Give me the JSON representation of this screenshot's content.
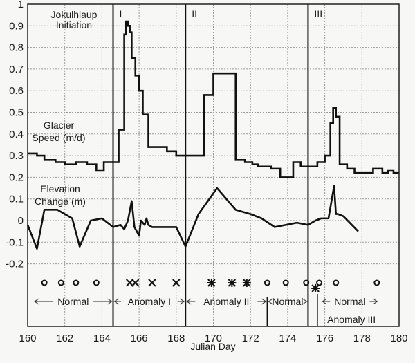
{
  "chart_data": {
    "type": "line",
    "title": "",
    "xlabel": "Julian Day",
    "ylabel": "",
    "xlim": [
      160,
      180
    ],
    "ylim": [
      -0.3,
      1.0
    ],
    "grid": true,
    "x_ticks": [
      160,
      162,
      164,
      166,
      168,
      170,
      172,
      174,
      176,
      178,
      180
    ],
    "y_ticks": [
      1,
      0.9,
      0.8,
      0.7,
      0.6,
      0.5,
      0.4,
      0.3,
      0.2,
      0.1,
      0,
      -0.1,
      -0.2
    ],
    "y_tick_labels": [
      "1",
      "0.9",
      "0.8",
      "0.7",
      "0.6",
      "0.5",
      "0.4",
      "0.3",
      "0.2",
      "0.1",
      "0",
      "-0.1",
      "-0.2"
    ],
    "annotations": {
      "jokulhlaup": "Jokulhlaup\nInitiation",
      "speed_label": "Glacier\nSpeed (m/d)",
      "elevation_label": "Elevation\nChange (m)",
      "event_markers": [
        {
          "label": "I",
          "x": 164.6
        },
        {
          "label": "II",
          "x": 168.5
        },
        {
          "label": "III",
          "x": 175.1
        }
      ]
    },
    "series": [
      {
        "name": "Glacier Speed (m/d)",
        "style": "step",
        "x": [
          160,
          160.5,
          160.9,
          161.5,
          162.0,
          162.6,
          163.2,
          163.7,
          164.1,
          164.6,
          164.9,
          165.2,
          165.3,
          165.4,
          165.5,
          165.6,
          165.8,
          166.0,
          166.2,
          166.5,
          167.5,
          168.0,
          168.5,
          169.5,
          170.0,
          170.4,
          171.2,
          171.7,
          172.1,
          172.4,
          172.7,
          173.1,
          173.6,
          174.0,
          174.3,
          174.7,
          175.2,
          175.6,
          176.0,
          176.3,
          176.45,
          176.6,
          176.8,
          177.2,
          177.6,
          178.2,
          178.6,
          179.1,
          179.4,
          179.7,
          180
        ],
        "y": [
          0.31,
          0.3,
          0.28,
          0.27,
          0.26,
          0.27,
          0.26,
          0.23,
          0.27,
          0.27,
          0.42,
          0.86,
          0.92,
          0.9,
          0.87,
          0.75,
          0.67,
          0.6,
          0.49,
          0.34,
          0.32,
          0.3,
          0.3,
          0.58,
          0.68,
          0.68,
          0.28,
          0.27,
          0.26,
          0.25,
          0.25,
          0.24,
          0.2,
          0.2,
          0.27,
          0.25,
          0.25,
          0.27,
          0.3,
          0.45,
          0.52,
          0.48,
          0.26,
          0.24,
          0.22,
          0.22,
          0.24,
          0.22,
          0.23,
          0.22,
          0.22
        ],
        "values": [
          0.31,
          0.3,
          0.28,
          0.27,
          0.26,
          0.27,
          0.26,
          0.23,
          0.27,
          0.27,
          0.42,
          0.86,
          0.92,
          0.9,
          0.87,
          0.75,
          0.67,
          0.6,
          0.49,
          0.34,
          0.32,
          0.3,
          0.3,
          0.58,
          0.68,
          0.68,
          0.28,
          0.27,
          0.26,
          0.25,
          0.25,
          0.24,
          0.2,
          0.2,
          0.27,
          0.25,
          0.25,
          0.27,
          0.3,
          0.45,
          0.52,
          0.48,
          0.26,
          0.24,
          0.22,
          0.22,
          0.24,
          0.22,
          0.23,
          0.22,
          0.22
        ]
      },
      {
        "name": "Elevation Change (m)",
        "style": "line",
        "x": [
          160,
          160.5,
          160.9,
          161.6,
          162.4,
          162.8,
          163.4,
          164.0,
          164.6,
          165.0,
          165.2,
          165.4,
          165.6,
          165.75,
          166.0,
          166.1,
          166.3,
          166.4,
          166.5,
          166.7,
          168.0,
          168.5,
          169.2,
          170.2,
          171.2,
          172.0,
          172.6,
          173.3,
          174.5,
          175.1,
          175.5,
          175.8,
          176.2,
          176.5,
          176.6,
          176.7,
          177.0,
          177.8
        ],
        "y": [
          -0.02,
          -0.13,
          0.05,
          0.05,
          0.01,
          -0.12,
          0.0,
          0.01,
          -0.03,
          -0.02,
          -0.04,
          0.0,
          0.09,
          -0.03,
          -0.07,
          0.0,
          -0.02,
          0.01,
          -0.02,
          -0.03,
          -0.03,
          -0.12,
          0.03,
          0.15,
          0.05,
          0.03,
          0.01,
          -0.03,
          -0.01,
          -0.02,
          0.0,
          0.01,
          0.01,
          0.16,
          0.03,
          0.03,
          0.02,
          -0.05
        ],
        "values": [
          -0.02,
          -0.13,
          0.05,
          0.05,
          0.01,
          -0.12,
          0.0,
          0.01,
          -0.03,
          -0.02,
          -0.04,
          0.0,
          0.09,
          -0.03,
          -0.07,
          0.0,
          -0.02,
          0.01,
          -0.02,
          -0.03,
          -0.03,
          -0.12,
          0.03,
          0.15,
          0.05,
          0.03,
          0.01,
          -0.03,
          -0.01,
          -0.02,
          0.0,
          0.01,
          0.01,
          0.16,
          0.03,
          0.03,
          0.02,
          -0.05
        ]
      }
    ],
    "classification_markers": [
      {
        "symbol": "o",
        "x": 160.9
      },
      {
        "symbol": "o",
        "x": 161.8
      },
      {
        "symbol": "o",
        "x": 162.6
      },
      {
        "symbol": "o",
        "x": 163.7
      },
      {
        "symbol": "x",
        "x": 165.5
      },
      {
        "symbol": "x",
        "x": 165.8
      },
      {
        "symbol": "x",
        "x": 166.7
      },
      {
        "symbol": "x",
        "x": 168.0
      },
      {
        "symbol": "*",
        "x": 169.9
      },
      {
        "symbol": "*",
        "x": 171.0
      },
      {
        "symbol": "*",
        "x": 171.8
      },
      {
        "symbol": "o",
        "x": 172.9
      },
      {
        "symbol": "o",
        "x": 173.9
      },
      {
        "symbol": "o",
        "x": 175.0
      },
      {
        "symbol": "o",
        "x": 175.7
      },
      {
        "symbol": "*",
        "x": 175.5,
        "low": true
      },
      {
        "symbol": "o",
        "x": 176.6
      },
      {
        "symbol": "o",
        "x": 178.8
      }
    ],
    "regimes": [
      {
        "label": "Normal",
        "from": 160.3,
        "to": 164.6
      },
      {
        "label": "Anomaly I",
        "from": 164.6,
        "to": 168.5
      },
      {
        "label": "Anomaly II",
        "from": 168.5,
        "to": 172.9
      },
      {
        "label": "Normal",
        "from": 172.9,
        "to": 175.1
      },
      {
        "label": "Anomaly III",
        "x": 175.5
      },
      {
        "label": "Normal",
        "from": 175.8,
        "to": 178.9
      }
    ]
  }
}
